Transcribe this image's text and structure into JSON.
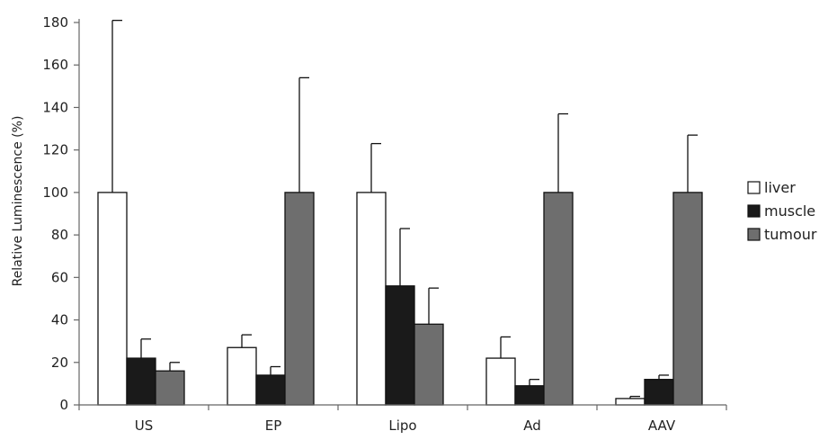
{
  "chart_data": {
    "type": "bar",
    "categories": [
      "US",
      "EP",
      "Lipo",
      "Ad",
      "AAV"
    ],
    "ylabel": "Relative Luminescence (%)",
    "xlabel": "",
    "ylim": [
      0,
      180
    ],
    "yticks": [
      0,
      20,
      40,
      60,
      80,
      100,
      120,
      140,
      160,
      180
    ],
    "grid": false,
    "legend_position": "right",
    "series": [
      {
        "name": "liver",
        "color": "#ffffff",
        "values": [
          100,
          27,
          100,
          22,
          3
        ],
        "errors": [
          81,
          6,
          23,
          10,
          1
        ]
      },
      {
        "name": "muscle",
        "color": "#1a1a1a",
        "values": [
          22,
          14,
          56,
          9,
          12
        ],
        "errors": [
          9,
          4,
          27,
          3,
          2
        ]
      },
      {
        "name": "tumour",
        "color": "#6e6e6e",
        "values": [
          16,
          100,
          38,
          100,
          100
        ],
        "errors": [
          4,
          54,
          17,
          37,
          27
        ]
      }
    ]
  }
}
